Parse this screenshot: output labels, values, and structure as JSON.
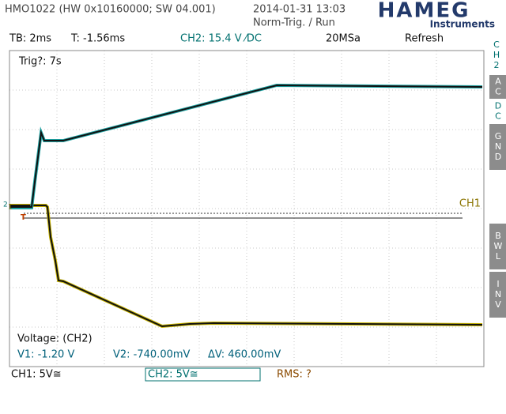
{
  "header": {
    "device": "HMO1022 (HW 0x10160000; SW 04.001)",
    "datetime": "2014-01-31 13:03",
    "trigger_state": "Norm-Trig. / Run",
    "logo": "HAMEG",
    "logo_sub": "Instruments"
  },
  "status": {
    "timebase": "TB: 2ms",
    "trigger_time": "T: -1.56ms",
    "trigger_level": "CH2: 15.4 V ⁄DC",
    "sample_rate": "20MSa",
    "mode": "Refresh"
  },
  "side_menu": {
    "channel": "CH 2",
    "buttons": [
      "AC",
      "DC",
      "GND",
      "BWL",
      "INV"
    ]
  },
  "screen": {
    "trig_info": "Trig?: 7s",
    "ch1_label": "CH1",
    "marker_ch2": "2",
    "marker_ch1": "1",
    "marker_trigger": "T",
    "measurement": {
      "title": "Voltage: (CH2)",
      "v1": "V1: -1.20 V",
      "v2": "V2: -740.00mV",
      "dv": "ΔV: 460.00mV"
    }
  },
  "footer": {
    "ch1": "CH1: 5V≅",
    "ch2": "CH2: 5V≅",
    "rms": "RMS: ?"
  }
}
